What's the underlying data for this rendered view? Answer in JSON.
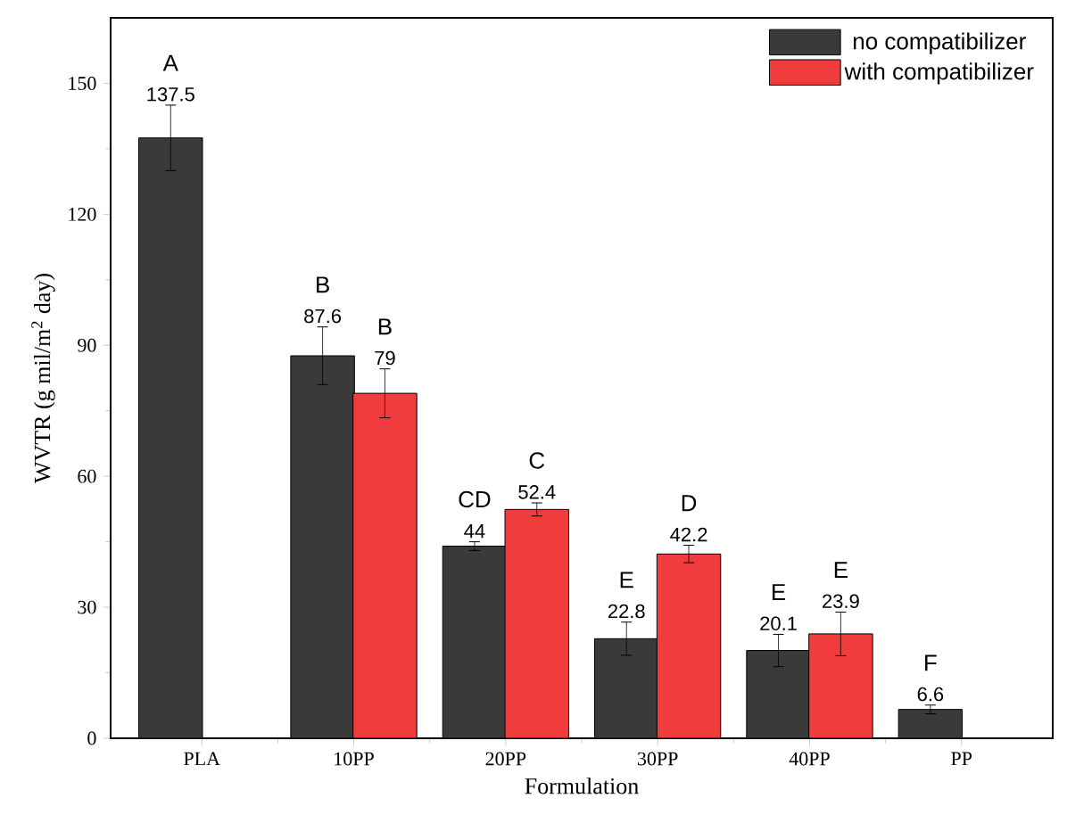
{
  "chart_data": {
    "type": "bar",
    "xlabel": "Formulation",
    "ylabel": "WVTR (g mil/m$^{2}$ day)",
    "categories": [
      "PLA",
      "10PP",
      "20PP",
      "30PP",
      "40PP",
      "PP"
    ],
    "series": [
      {
        "name": "no compatibilizer",
        "color": "#3a3a3a",
        "values": [
          137.5,
          87.6,
          44,
          22.8,
          20.1,
          6.6
        ],
        "errors": [
          7.5,
          6.6,
          1,
          3.8,
          3.7,
          1
        ]
      },
      {
        "name": "with compatibilizer",
        "color": "#f03c3c",
        "values": [
          null,
          79,
          52.4,
          42.2,
          23.9,
          null
        ],
        "errors": [
          null,
          5.6,
          1.5,
          2,
          5,
          null
        ]
      }
    ],
    "ylim": [
      0,
      165
    ],
    "yticks": [
      0,
      30,
      60,
      90,
      120,
      150
    ],
    "data_labels": true,
    "legend": "top right",
    "grid": false,
    "annotations": [
      "A",
      "B",
      "B",
      "CD",
      "C",
      "E",
      "D",
      "E",
      "E",
      "F"
    ]
  }
}
